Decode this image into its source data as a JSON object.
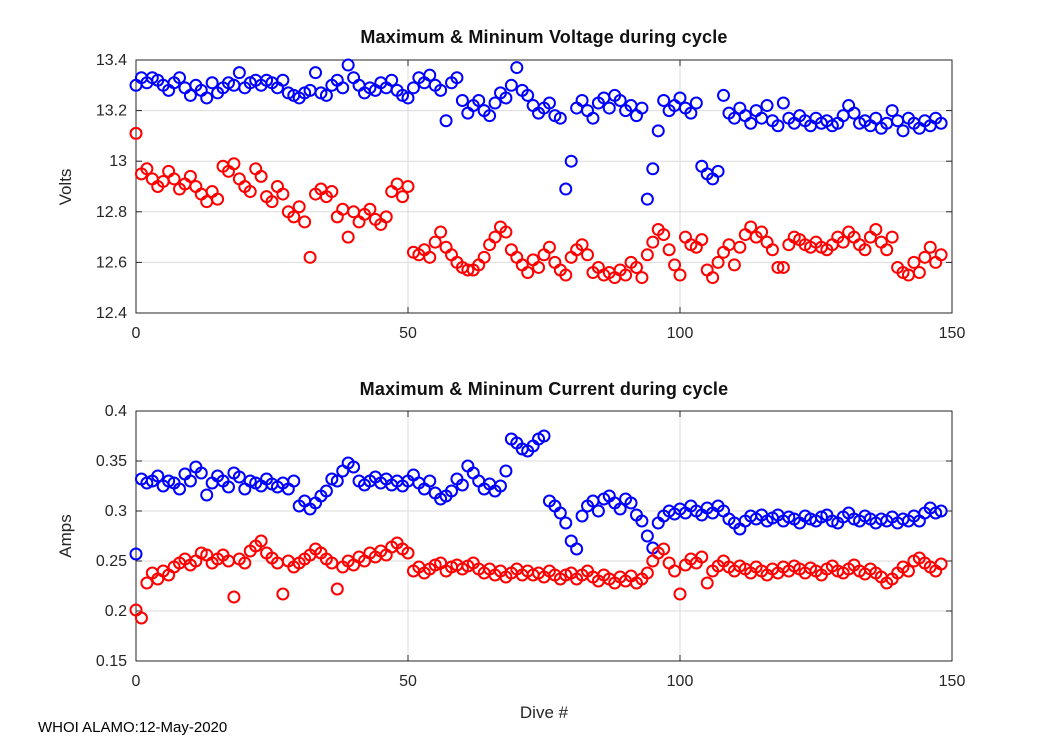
{
  "figure": {
    "background": "#ffffff",
    "footer": "WHOI ALAMO:12-May-2020",
    "axis_color": "#262626",
    "grid_color": "#dbdbdb"
  },
  "chart_data": [
    {
      "type": "scatter",
      "title": "Maximum & Mininum Voltage during cycle",
      "ylabel": "Volts",
      "xlabel": "",
      "ylim": [
        12.4,
        13.4
      ],
      "xlim": [
        0,
        150
      ],
      "grid": true,
      "legend": "none",
      "x_encoding": "dive index 0-148",
      "yticks": {
        "values": [
          12.4,
          12.6,
          12.8,
          13.0,
          13.2,
          13.4
        ],
        "labels": [
          "12.4",
          "12.6",
          "12.8",
          "13",
          "13.2",
          "13.4"
        ]
      },
      "xticks": {
        "values": [
          0,
          50,
          100,
          150
        ],
        "labels": [
          "0",
          "50",
          "100",
          "150"
        ]
      },
      "series": [
        {
          "name": "maximum voltage",
          "color": "#0000FF",
          "marker": "open-circle",
          "values": [
            13.3,
            13.33,
            13.31,
            13.33,
            13.32,
            13.3,
            13.28,
            13.31,
            13.33,
            13.29,
            13.26,
            13.3,
            13.28,
            13.25,
            13.31,
            13.27,
            13.29,
            13.31,
            13.3,
            13.35,
            13.29,
            13.31,
            13.32,
            13.3,
            13.32,
            13.31,
            13.29,
            13.32,
            13.27,
            13.26,
            13.25,
            13.27,
            13.28,
            13.35,
            13.27,
            13.26,
            13.3,
            13.32,
            13.29,
            13.38,
            13.33,
            13.3,
            13.27,
            13.29,
            13.28,
            13.31,
            13.29,
            13.32,
            13.28,
            13.26,
            13.25,
            13.29,
            13.33,
            13.31,
            13.34,
            13.3,
            13.28,
            13.16,
            13.31,
            13.33,
            13.24,
            13.19,
            13.22,
            13.24,
            13.2,
            13.18,
            13.23,
            13.27,
            13.25,
            13.3,
            13.37,
            13.28,
            13.26,
            13.22,
            13.19,
            13.21,
            13.23,
            13.18,
            13.17,
            12.89,
            13.0,
            13.21,
            13.24,
            13.2,
            13.17,
            13.23,
            13.25,
            13.21,
            13.26,
            13.24,
            13.2,
            13.22,
            13.18,
            13.21,
            12.85,
            12.97,
            13.12,
            13.24,
            13.2,
            13.22,
            13.25,
            13.21,
            13.19,
            13.23,
            12.98,
            12.95,
            12.93,
            12.96,
            13.26,
            13.19,
            13.17,
            13.21,
            13.18,
            13.15,
            13.2,
            13.17,
            13.22,
            13.16,
            13.14,
            13.23,
            13.17,
            13.15,
            13.18,
            13.16,
            13.14,
            13.17,
            13.15,
            13.16,
            13.14,
            13.15,
            13.18,
            13.22,
            13.19,
            13.15,
            13.16,
            13.14,
            13.17,
            13.13,
            13.15,
            13.2,
            13.16,
            13.12,
            13.17,
            13.15,
            13.13,
            13.16,
            13.14,
            13.17,
            13.15
          ]
        },
        {
          "name": "minimum voltage",
          "color": "#FF0000",
          "marker": "open-circle",
          "values": [
            13.11,
            12.95,
            12.97,
            12.93,
            12.9,
            12.92,
            12.96,
            12.93,
            12.89,
            12.91,
            12.94,
            12.9,
            12.87,
            12.84,
            12.88,
            12.85,
            12.98,
            12.96,
            12.99,
            12.93,
            12.9,
            12.88,
            12.97,
            12.94,
            12.86,
            12.84,
            12.9,
            12.87,
            12.8,
            12.78,
            12.82,
            12.76,
            12.62,
            12.87,
            12.89,
            12.86,
            12.88,
            12.78,
            12.81,
            12.7,
            12.8,
            12.76,
            12.79,
            12.81,
            12.77,
            12.75,
            12.78,
            12.88,
            12.91,
            12.86,
            12.9,
            12.64,
            12.63,
            12.65,
            12.62,
            12.68,
            12.72,
            12.66,
            12.63,
            12.6,
            12.58,
            12.57,
            12.57,
            12.59,
            12.62,
            12.67,
            12.7,
            12.74,
            12.72,
            12.65,
            12.62,
            12.59,
            12.56,
            12.61,
            12.58,
            12.63,
            12.66,
            12.6,
            12.57,
            12.55,
            12.62,
            12.65,
            12.67,
            12.63,
            12.56,
            12.58,
            12.55,
            12.56,
            12.54,
            12.57,
            12.55,
            12.6,
            12.58,
            12.54,
            12.63,
            12.68,
            12.73,
            12.71,
            12.65,
            12.59,
            12.55,
            12.7,
            12.67,
            12.66,
            12.69,
            12.57,
            12.54,
            12.6,
            12.64,
            12.67,
            12.59,
            12.66,
            12.71,
            12.74,
            12.7,
            12.72,
            12.68,
            12.65,
            12.58,
            12.58,
            12.67,
            12.7,
            12.69,
            12.67,
            12.66,
            12.68,
            12.66,
            12.65,
            12.67,
            12.7,
            12.68,
            12.72,
            12.7,
            12.67,
            12.65,
            12.7,
            12.73,
            12.68,
            12.65,
            12.7,
            12.58,
            12.56,
            12.55,
            12.6,
            12.56,
            12.62,
            12.66,
            12.6,
            12.63
          ]
        }
      ]
    },
    {
      "type": "scatter",
      "title": "Maximum & Mininum Current during cycle",
      "ylabel": "Amps",
      "xlabel": "Dive #",
      "ylim": [
        0.15,
        0.4
      ],
      "xlim": [
        0,
        150
      ],
      "grid": true,
      "legend": "none",
      "x_encoding": "dive index 0-148",
      "yticks": {
        "values": [
          0.15,
          0.2,
          0.25,
          0.3,
          0.35,
          0.4
        ],
        "labels": [
          "0.15",
          "0.2",
          "0.25",
          "0.3",
          "0.35",
          "0.4"
        ]
      },
      "xticks": {
        "values": [
          0,
          50,
          100,
          150
        ],
        "labels": [
          "0",
          "50",
          "100",
          "150"
        ]
      },
      "series": [
        {
          "name": "maximum current",
          "color": "#0000FF",
          "marker": "open-circle",
          "values": [
            0.257,
            0.332,
            0.328,
            0.33,
            0.335,
            0.325,
            0.33,
            0.328,
            0.322,
            0.337,
            0.33,
            0.344,
            0.338,
            0.316,
            0.328,
            0.335,
            0.33,
            0.324,
            0.338,
            0.334,
            0.322,
            0.33,
            0.328,
            0.325,
            0.332,
            0.327,
            0.324,
            0.328,
            0.322,
            0.33,
            0.305,
            0.31,
            0.302,
            0.308,
            0.315,
            0.32,
            0.332,
            0.33,
            0.34,
            0.348,
            0.344,
            0.33,
            0.326,
            0.33,
            0.334,
            0.328,
            0.332,
            0.326,
            0.33,
            0.325,
            0.33,
            0.336,
            0.328,
            0.322,
            0.33,
            0.318,
            0.312,
            0.315,
            0.32,
            0.332,
            0.326,
            0.345,
            0.338,
            0.33,
            0.322,
            0.327,
            0.32,
            0.325,
            0.34,
            0.372,
            0.368,
            0.362,
            0.36,
            0.365,
            0.372,
            0.375,
            0.31,
            0.305,
            0.298,
            0.288,
            0.27,
            0.262,
            0.295,
            0.305,
            0.31,
            0.3,
            0.312,
            0.315,
            0.308,
            0.302,
            0.312,
            0.308,
            0.296,
            0.29,
            0.275,
            0.263,
            0.288,
            0.295,
            0.3,
            0.297,
            0.302,
            0.298,
            0.305,
            0.3,
            0.296,
            0.303,
            0.298,
            0.305,
            0.3,
            0.292,
            0.288,
            0.282,
            0.29,
            0.295,
            0.292,
            0.296,
            0.29,
            0.293,
            0.296,
            0.29,
            0.294,
            0.292,
            0.288,
            0.295,
            0.292,
            0.29,
            0.294,
            0.296,
            0.29,
            0.288,
            0.294,
            0.298,
            0.292,
            0.29,
            0.295,
            0.292,
            0.288,
            0.292,
            0.29,
            0.294,
            0.288,
            0.292,
            0.29,
            0.295,
            0.29,
            0.298,
            0.303,
            0.298,
            0.3
          ]
        },
        {
          "name": "minimum current",
          "color": "#FF0000",
          "marker": "open-circle",
          "values": [
            0.201,
            0.193,
            0.228,
            0.238,
            0.232,
            0.24,
            0.236,
            0.244,
            0.248,
            0.252,
            0.246,
            0.25,
            0.258,
            0.256,
            0.248,
            0.252,
            0.256,
            0.25,
            0.214,
            0.252,
            0.248,
            0.26,
            0.265,
            0.27,
            0.258,
            0.253,
            0.248,
            0.217,
            0.25,
            0.244,
            0.248,
            0.252,
            0.256,
            0.262,
            0.258,
            0.252,
            0.248,
            0.222,
            0.244,
            0.25,
            0.246,
            0.254,
            0.25,
            0.258,
            0.254,
            0.26,
            0.256,
            0.264,
            0.268,
            0.262,
            0.258,
            0.24,
            0.244,
            0.238,
            0.242,
            0.246,
            0.248,
            0.24,
            0.244,
            0.246,
            0.242,
            0.245,
            0.248,
            0.242,
            0.238,
            0.242,
            0.236,
            0.24,
            0.234,
            0.238,
            0.242,
            0.236,
            0.24,
            0.236,
            0.238,
            0.234,
            0.24,
            0.236,
            0.232,
            0.236,
            0.238,
            0.232,
            0.236,
            0.24,
            0.234,
            0.23,
            0.236,
            0.232,
            0.228,
            0.234,
            0.23,
            0.235,
            0.228,
            0.232,
            0.238,
            0.25,
            0.258,
            0.262,
            0.248,
            0.24,
            0.217,
            0.246,
            0.252,
            0.248,
            0.254,
            0.228,
            0.24,
            0.245,
            0.25,
            0.244,
            0.24,
            0.245,
            0.242,
            0.238,
            0.244,
            0.24,
            0.236,
            0.242,
            0.238,
            0.244,
            0.24,
            0.245,
            0.242,
            0.238,
            0.243,
            0.24,
            0.236,
            0.242,
            0.245,
            0.24,
            0.238,
            0.242,
            0.246,
            0.24,
            0.237,
            0.242,
            0.238,
            0.234,
            0.228,
            0.232,
            0.238,
            0.244,
            0.24,
            0.25,
            0.253,
            0.248,
            0.244,
            0.24,
            0.247
          ]
        }
      ]
    }
  ]
}
